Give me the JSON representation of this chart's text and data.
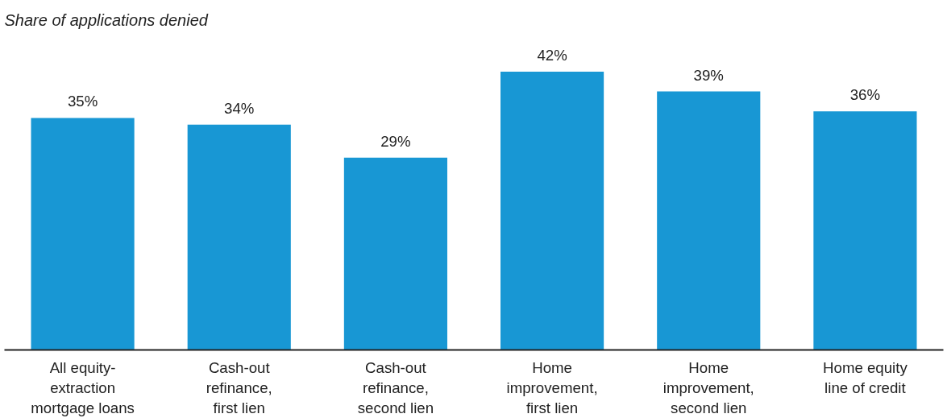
{
  "chart_data": {
    "type": "bar",
    "title": "Share of applications denied",
    "categories": [
      "All equity-extraction mortgage loans",
      "Cash-out refinance, first lien",
      "Cash-out refinance, second lien",
      "Home improvement, first lien",
      "Home improvement, second lien",
      "Home equity line of credit"
    ],
    "values": [
      35,
      34,
      29,
      42,
      39,
      36
    ],
    "value_labels": [
      "35%",
      "34%",
      "29%",
      "42%",
      "39%",
      "36%"
    ],
    "color": "#1897d4",
    "grid": false
  }
}
